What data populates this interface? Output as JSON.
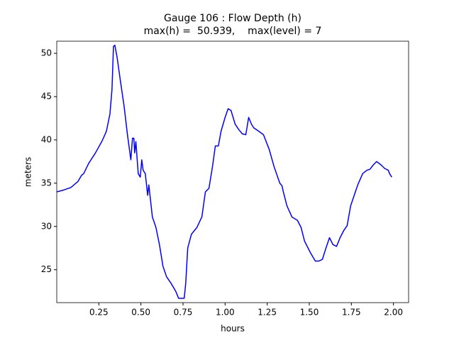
{
  "chart_data": {
    "type": "line",
    "title": "Gauge 106 : Flow Depth (h)",
    "subtitle": "max(h) =  50.939,    max(level) = 7",
    "x_label": "hours",
    "y_label": "meters",
    "xlim": [
      0,
      2.09
    ],
    "ylim": [
      21.2,
      51.4
    ],
    "xticks": [
      0.25,
      {
        "value": 0.5,
        "label": "0.50"
      },
      0.75,
      {
        "value": 1.0,
        "label": "1.00"
      },
      1.25,
      {
        "value": 1.5,
        "label": "1.50"
      },
      1.75,
      {
        "value": 2.0,
        "label": "2.00"
      }
    ],
    "yticks": [
      25,
      30,
      35,
      40,
      45,
      50
    ],
    "grid": false,
    "series": [
      {
        "color": "#0000ff",
        "x": [
          0,
          0.04,
          0.084,
          0.126,
          0.147,
          0.16,
          0.19,
          0.23,
          0.27,
          0.295,
          0.316,
          0.328,
          0.337,
          0.345,
          0.358,
          0.379,
          0.4,
          0.42,
          0.44,
          0.45,
          0.458,
          0.463,
          0.47,
          0.484,
          0.496,
          0.505,
          0.513,
          0.526,
          0.54,
          0.547,
          0.568,
          0.589,
          0.61,
          0.631,
          0.652,
          0.68,
          0.707,
          0.724,
          0.757,
          0.766,
          0.778,
          0.8,
          0.833,
          0.862,
          0.883,
          0.904,
          0.925,
          0.942,
          0.96,
          0.976,
          1.0,
          1.018,
          1.035,
          1.06,
          1.081,
          1.102,
          1.123,
          1.14,
          1.157,
          1.17,
          1.2,
          1.228,
          1.262,
          1.291,
          1.325,
          1.338,
          1.346,
          1.367,
          1.397,
          1.43,
          1.451,
          1.472,
          1.506,
          1.536,
          1.557,
          1.578,
          1.599,
          1.62,
          1.641,
          1.662,
          1.683,
          1.704,
          1.725,
          1.746,
          1.767,
          1.788,
          1.817,
          1.843,
          1.86,
          1.88,
          1.9,
          1.927,
          1.948,
          1.969,
          1.977,
          1.99
        ],
        "values": [
          34.0,
          34.2,
          34.5,
          35.2,
          35.9,
          36.1,
          37.3,
          38.5,
          39.9,
          41.0,
          43.0,
          45.8,
          50.8,
          50.939,
          49.6,
          46.7,
          43.9,
          40.6,
          37.7,
          40.2,
          40.2,
          38.5,
          39.8,
          36.1,
          35.7,
          37.7,
          36.5,
          36.1,
          33.6,
          34.8,
          31.1,
          29.9,
          27.9,
          25.4,
          24.2,
          23.4,
          22.5,
          21.7,
          21.7,
          23.4,
          27.5,
          29.1,
          29.9,
          31.1,
          34.0,
          34.4,
          36.9,
          39.3,
          39.3,
          41.0,
          42.6,
          43.6,
          43.4,
          41.8,
          41.2,
          40.7,
          40.6,
          42.6,
          41.8,
          41.4,
          41.0,
          40.6,
          38.9,
          36.9,
          35.0,
          34.7,
          34.0,
          32.4,
          31.1,
          30.7,
          29.9,
          28.3,
          27.0,
          26.0,
          26.0,
          26.2,
          27.5,
          28.7,
          27.9,
          27.7,
          28.7,
          29.5,
          30.1,
          32.4,
          33.6,
          34.8,
          36.1,
          36.5,
          36.6,
          37.1,
          37.5,
          37.1,
          36.7,
          36.5,
          36.1,
          35.7
        ]
      }
    ]
  }
}
